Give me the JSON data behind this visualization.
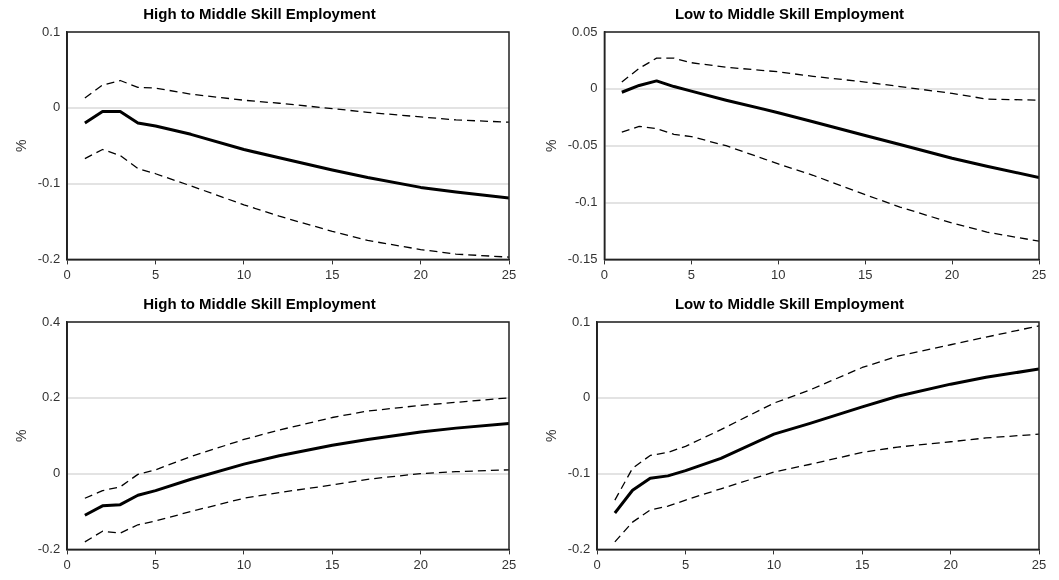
{
  "chart_data": [
    {
      "type": "line",
      "title": "High to Middle Skill Employment",
      "ylabel": "%",
      "x": [
        1,
        2,
        3,
        4,
        5,
        7,
        10,
        12,
        15,
        17,
        20,
        22,
        25
      ],
      "xlim": [
        0,
        25
      ],
      "xticks": [
        0,
        5,
        10,
        15,
        20,
        25
      ],
      "ylim": [
        -0.2,
        0.1
      ],
      "yticks": [
        -0.2,
        -0.1,
        0,
        0.1
      ],
      "grid": "y",
      "legend": false,
      "marker": "none",
      "series": [
        {
          "color": "#000000",
          "line_style": "solid",
          "values": [
            -0.02,
            -0.005,
            -0.005,
            -0.02,
            -0.024,
            -0.035,
            -0.055,
            -0.066,
            -0.082,
            -0.092,
            -0.105,
            -0.111,
            -0.119
          ]
        },
        {
          "color": "#000000",
          "line_style": "dashed",
          "values": [
            0.013,
            0.03,
            0.036,
            0.027,
            0.026,
            0.018,
            0.01,
            0.006,
            -0.001,
            -0.006,
            -0.012,
            -0.016,
            -0.019
          ]
        },
        {
          "color": "#000000",
          "line_style": "dashed",
          "values": [
            -0.067,
            -0.055,
            -0.063,
            -0.08,
            -0.087,
            -0.103,
            -0.128,
            -0.143,
            -0.163,
            -0.175,
            -0.187,
            -0.193,
            -0.197
          ]
        }
      ]
    },
    {
      "type": "line",
      "title": "Low to Middle Skill Employment",
      "ylabel": "%",
      "x": [
        1,
        2,
        3,
        4,
        5,
        7,
        10,
        12,
        15,
        17,
        20,
        22,
        25
      ],
      "xlim": [
        0,
        25
      ],
      "xticks": [
        0,
        5,
        10,
        15,
        20,
        25
      ],
      "ylim": [
        -0.15,
        0.05
      ],
      "yticks": [
        -0.15,
        -0.1,
        -0.05,
        0,
        0.05
      ],
      "grid": "y",
      "legend": false,
      "marker": "none",
      "series": [
        {
          "color": "#000000",
          "line_style": "solid",
          "values": [
            -0.003,
            0.003,
            0.007,
            0.002,
            -0.002,
            -0.01,
            -0.021,
            -0.029,
            -0.041,
            -0.049,
            -0.061,
            -0.068,
            -0.078
          ]
        },
        {
          "color": "#000000",
          "line_style": "dashed",
          "values": [
            0.006,
            0.018,
            0.027,
            0.027,
            0.023,
            0.019,
            0.015,
            0.011,
            0.006,
            0.002,
            -0.004,
            -0.009,
            -0.01
          ]
        },
        {
          "color": "#000000",
          "line_style": "dashed",
          "values": [
            -0.038,
            -0.033,
            -0.035,
            -0.04,
            -0.042,
            -0.05,
            -0.066,
            -0.076,
            -0.093,
            -0.104,
            -0.118,
            -0.126,
            -0.134
          ]
        }
      ]
    },
    {
      "type": "line",
      "title": "High to Middle Skill Employment",
      "ylabel": "%",
      "x": [
        1,
        2,
        3,
        4,
        5,
        7,
        10,
        12,
        15,
        17,
        20,
        22,
        25
      ],
      "xlim": [
        0,
        25
      ],
      "xticks": [
        0,
        5,
        10,
        15,
        20,
        25
      ],
      "ylim": [
        -0.2,
        0.4
      ],
      "yticks": [
        -0.2,
        0,
        0.2,
        0.4
      ],
      "grid": "y",
      "legend": false,
      "marker": "none",
      "series": [
        {
          "color": "#000000",
          "line_style": "solid",
          "values": [
            -0.11,
            -0.085,
            -0.082,
            -0.057,
            -0.045,
            -0.015,
            0.025,
            0.047,
            0.075,
            0.09,
            0.11,
            0.12,
            0.132
          ]
        },
        {
          "color": "#000000",
          "line_style": "dashed",
          "values": [
            -0.065,
            -0.045,
            -0.035,
            -0.002,
            0.01,
            0.045,
            0.09,
            0.115,
            0.148,
            0.165,
            0.18,
            0.188,
            0.2
          ]
        },
        {
          "color": "#000000",
          "line_style": "dashed",
          "values": [
            -0.18,
            -0.152,
            -0.157,
            -0.135,
            -0.125,
            -0.1,
            -0.065,
            -0.05,
            -0.03,
            -0.015,
            0.0,
            0.005,
            0.01
          ]
        }
      ]
    },
    {
      "type": "line",
      "title": "Low to Middle Skill Employment",
      "ylabel": "%",
      "x": [
        1,
        2,
        3,
        4,
        5,
        7,
        10,
        12,
        15,
        17,
        20,
        22,
        25
      ],
      "xlim": [
        0,
        25
      ],
      "xticks": [
        0,
        5,
        10,
        15,
        20,
        25
      ],
      "ylim": [
        -0.2,
        0.1
      ],
      "yticks": [
        -0.2,
        -0.1,
        0,
        0.1
      ],
      "grid": "y",
      "legend": false,
      "marker": "none",
      "series": [
        {
          "color": "#000000",
          "line_style": "solid",
          "values": [
            -0.152,
            -0.122,
            -0.106,
            -0.103,
            -0.096,
            -0.08,
            -0.048,
            -0.034,
            -0.012,
            0.002,
            0.018,
            0.027,
            0.038
          ]
        },
        {
          "color": "#000000",
          "line_style": "dashed",
          "values": [
            -0.135,
            -0.093,
            -0.076,
            -0.072,
            -0.064,
            -0.042,
            -0.007,
            0.01,
            0.04,
            0.055,
            0.07,
            0.08,
            0.095
          ]
        },
        {
          "color": "#000000",
          "line_style": "dashed",
          "values": [
            -0.19,
            -0.164,
            -0.148,
            -0.143,
            -0.135,
            -0.12,
            -0.098,
            -0.088,
            -0.072,
            -0.065,
            -0.058,
            -0.053,
            -0.048
          ]
        }
      ]
    }
  ]
}
